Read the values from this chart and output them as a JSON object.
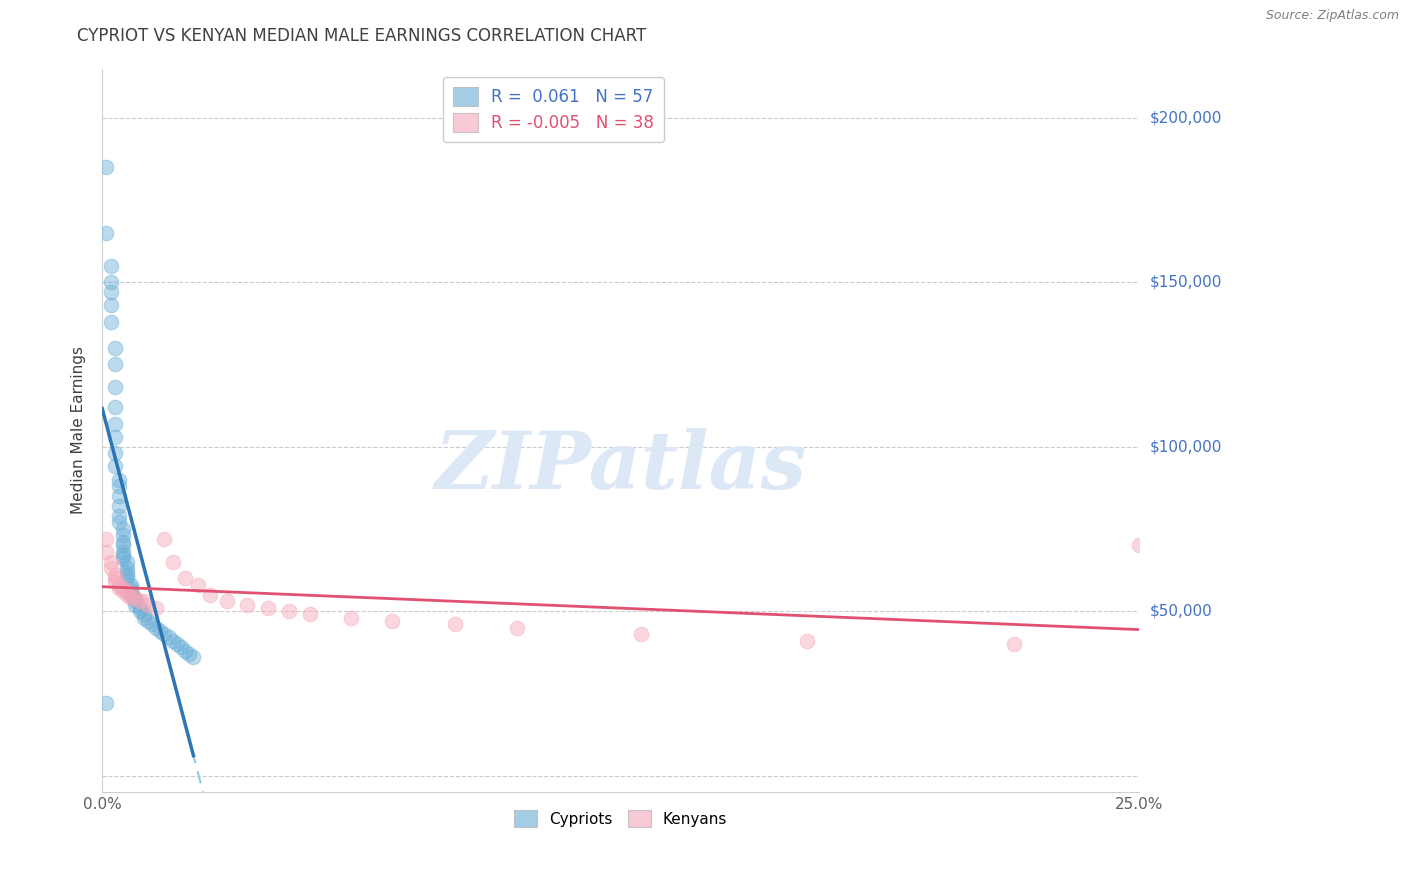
{
  "title": "CYPRIOT VS KENYAN MEDIAN MALE EARNINGS CORRELATION CHART",
  "source": "Source: ZipAtlas.com",
  "xlabel_ticks": [
    "0.0%",
    "25.0%"
  ],
  "ylabel_label": "Median Male Earnings",
  "ylabel_ticks": [
    0,
    50000,
    100000,
    150000,
    200000
  ],
  "ylabel_tick_labels": [
    "",
    "$50,000",
    "$100,000",
    "$150,000",
    "$200,000"
  ],
  "xmin": 0.0,
  "xmax": 0.25,
  "ymin": -5000,
  "ymax": 215000,
  "legend_blue_r": "0.061",
  "legend_blue_n": "57",
  "legend_pink_r": "-0.005",
  "legend_pink_n": "38",
  "blue_color": "#6aaed6",
  "pink_color": "#f4a7b9",
  "blue_line_color": "#2e75b6",
  "pink_line_color": "#e05070",
  "blue_dashed_color": "#7ec8e3",
  "watermark": "ZIPatlas",
  "watermark_color": "#dce8f5",
  "background_color": "#ffffff",
  "grid_color": "#cccccc",
  "title_color": "#404040",
  "right_label_color": "#4472c4",
  "source_color": "#808080",
  "cypriot_x": [
    0.001,
    0.001,
    0.002,
    0.002,
    0.002,
    0.002,
    0.002,
    0.003,
    0.003,
    0.003,
    0.003,
    0.003,
    0.003,
    0.003,
    0.003,
    0.004,
    0.004,
    0.004,
    0.004,
    0.004,
    0.004,
    0.005,
    0.005,
    0.005,
    0.005,
    0.005,
    0.005,
    0.005,
    0.006,
    0.006,
    0.006,
    0.006,
    0.006,
    0.007,
    0.007,
    0.007,
    0.007,
    0.008,
    0.008,
    0.008,
    0.009,
    0.009,
    0.01,
    0.01,
    0.011,
    0.012,
    0.013,
    0.014,
    0.015,
    0.016,
    0.017,
    0.018,
    0.019,
    0.02,
    0.021,
    0.022,
    0.001
  ],
  "cypriot_y": [
    185000,
    165000,
    155000,
    150000,
    147000,
    143000,
    138000,
    130000,
    125000,
    118000,
    112000,
    107000,
    103000,
    98000,
    94000,
    90000,
    88000,
    85000,
    82000,
    79000,
    77000,
    75000,
    73000,
    71000,
    70000,
    68000,
    67000,
    66000,
    65000,
    63000,
    62000,
    61000,
    60000,
    58000,
    57000,
    56000,
    55000,
    54000,
    53000,
    52000,
    51000,
    50000,
    49000,
    48000,
    47000,
    46000,
    45000,
    44000,
    43000,
    42000,
    41000,
    40000,
    39000,
    38000,
    37000,
    36000,
    22000
  ],
  "kenyan_x": [
    0.001,
    0.001,
    0.002,
    0.002,
    0.003,
    0.003,
    0.003,
    0.004,
    0.004,
    0.005,
    0.005,
    0.006,
    0.006,
    0.007,
    0.007,
    0.008,
    0.009,
    0.01,
    0.011,
    0.013,
    0.015,
    0.017,
    0.02,
    0.023,
    0.026,
    0.03,
    0.035,
    0.04,
    0.045,
    0.05,
    0.06,
    0.07,
    0.085,
    0.1,
    0.13,
    0.17,
    0.22,
    0.25
  ],
  "kenyan_y": [
    72000,
    68000,
    65000,
    63000,
    61000,
    60000,
    59000,
    58000,
    57000,
    57000,
    56000,
    56000,
    55000,
    55000,
    54000,
    54000,
    53000,
    53000,
    52000,
    51000,
    72000,
    65000,
    60000,
    58000,
    55000,
    53000,
    52000,
    51000,
    50000,
    49000,
    48000,
    47000,
    46000,
    45000,
    43000,
    41000,
    40000,
    70000
  ]
}
